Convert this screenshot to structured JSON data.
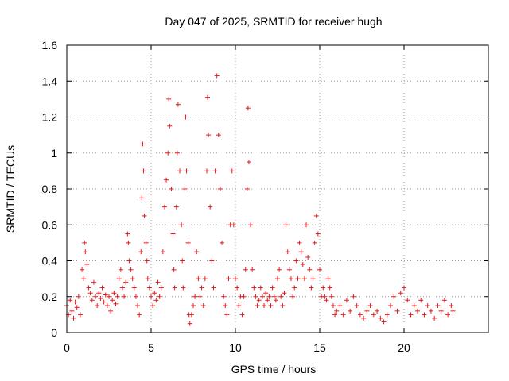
{
  "chart_data": {
    "type": "scatter",
    "title": "Day 047 of 2025, SRMTID for receiver hugh",
    "xlabel": "GPS time / hours",
    "ylabel": "SRMTID / TECUs",
    "xlim": [
      0,
      25
    ],
    "ylim": [
      0,
      1.6
    ],
    "xticks": [
      0,
      5,
      10,
      15,
      20
    ],
    "xtick_labels": [
      "0",
      "5",
      "10",
      "15",
      "20"
    ],
    "yticks": [
      0,
      0.2,
      0.4,
      0.6,
      0.8,
      1,
      1.2,
      1.4,
      1.6
    ],
    "ytick_labels": [
      "0",
      "0.2",
      "0.4",
      "0.6",
      "0.8",
      "1",
      "1.2",
      "1.4",
      "1.6"
    ],
    "grid": true,
    "marker": "plus",
    "series": [
      {
        "name": "SRMTID",
        "color": "#e41a1c",
        "points": [
          [
            0.0,
            0.15
          ],
          [
            0.1,
            0.1
          ],
          [
            0.2,
            0.18
          ],
          [
            0.3,
            0.12
          ],
          [
            0.4,
            0.08
          ],
          [
            0.5,
            0.17
          ],
          [
            0.6,
            0.14
          ],
          [
            0.7,
            0.2
          ],
          [
            0.8,
            0.1
          ],
          [
            0.9,
            0.35
          ],
          [
            1.0,
            0.3
          ],
          [
            1.05,
            0.5
          ],
          [
            1.1,
            0.45
          ],
          [
            1.2,
            0.38
          ],
          [
            1.3,
            0.25
          ],
          [
            1.4,
            0.22
          ],
          [
            1.5,
            0.18
          ],
          [
            1.6,
            0.28
          ],
          [
            1.7,
            0.2
          ],
          [
            1.8,
            0.15
          ],
          [
            1.9,
            0.22
          ],
          [
            2.0,
            0.19
          ],
          [
            2.1,
            0.25
          ],
          [
            2.2,
            0.17
          ],
          [
            2.3,
            0.21
          ],
          [
            2.4,
            0.15
          ],
          [
            2.5,
            0.2
          ],
          [
            2.6,
            0.12
          ],
          [
            2.7,
            0.18
          ],
          [
            2.8,
            0.22
          ],
          [
            2.9,
            0.16
          ],
          [
            3.0,
            0.2
          ],
          [
            3.1,
            0.3
          ],
          [
            3.2,
            0.35
          ],
          [
            3.3,
            0.25
          ],
          [
            3.4,
            0.2
          ],
          [
            3.5,
            0.28
          ],
          [
            3.6,
            0.55
          ],
          [
            3.65,
            0.5
          ],
          [
            3.7,
            0.4
          ],
          [
            3.8,
            0.35
          ],
          [
            3.9,
            0.3
          ],
          [
            4.0,
            0.25
          ],
          [
            4.1,
            0.2
          ],
          [
            4.2,
            0.15
          ],
          [
            4.3,
            0.1
          ],
          [
            4.4,
            0.45
          ],
          [
            4.45,
            0.75
          ],
          [
            4.5,
            1.05
          ],
          [
            4.55,
            0.9
          ],
          [
            4.6,
            0.65
          ],
          [
            4.7,
            0.5
          ],
          [
            4.75,
            0.4
          ],
          [
            4.8,
            0.3
          ],
          [
            4.9,
            0.25
          ],
          [
            5.0,
            0.2
          ],
          [
            5.1,
            0.15
          ],
          [
            5.2,
            0.22
          ],
          [
            5.3,
            0.18
          ],
          [
            5.4,
            0.28
          ],
          [
            5.5,
            0.2
          ],
          [
            5.6,
            0.25
          ],
          [
            5.7,
            0.45
          ],
          [
            5.8,
            0.7
          ],
          [
            5.9,
            0.85
          ],
          [
            6.0,
            1.0
          ],
          [
            6.05,
            1.3
          ],
          [
            6.1,
            1.15
          ],
          [
            6.2,
            0.8
          ],
          [
            6.3,
            0.55
          ],
          [
            6.35,
            0.35
          ],
          [
            6.4,
            0.25
          ],
          [
            6.5,
            0.7
          ],
          [
            6.55,
            1.0
          ],
          [
            6.6,
            1.27
          ],
          [
            6.7,
            0.9
          ],
          [
            6.8,
            0.6
          ],
          [
            6.85,
            0.4
          ],
          [
            6.9,
            0.25
          ],
          [
            7.0,
            0.8
          ],
          [
            7.05,
            1.2
          ],
          [
            7.1,
            0.9
          ],
          [
            7.2,
            0.5
          ],
          [
            7.25,
            0.1
          ],
          [
            7.3,
            0.05
          ],
          [
            7.4,
            0.1
          ],
          [
            7.5,
            0.15
          ],
          [
            7.6,
            0.2
          ],
          [
            7.7,
            0.45
          ],
          [
            7.8,
            0.3
          ],
          [
            7.9,
            0.2
          ],
          [
            8.0,
            0.25
          ],
          [
            8.1,
            0.15
          ],
          [
            8.2,
            0.3
          ],
          [
            8.3,
            0.9
          ],
          [
            8.35,
            1.31
          ],
          [
            8.4,
            1.1
          ],
          [
            8.5,
            0.7
          ],
          [
            8.6,
            0.4
          ],
          [
            8.7,
            0.25
          ],
          [
            8.8,
            0.9
          ],
          [
            8.9,
            1.43
          ],
          [
            9.0,
            1.1
          ],
          [
            9.1,
            0.8
          ],
          [
            9.2,
            0.5
          ],
          [
            9.3,
            0.2
          ],
          [
            9.4,
            0.15
          ],
          [
            9.5,
            0.1
          ],
          [
            9.6,
            0.3
          ],
          [
            9.7,
            0.6
          ],
          [
            9.8,
            0.9
          ],
          [
            9.9,
            0.6
          ],
          [
            10.0,
            0.3
          ],
          [
            10.1,
            0.25
          ],
          [
            10.2,
            0.15
          ],
          [
            10.3,
            0.2
          ],
          [
            10.4,
            0.1
          ],
          [
            10.5,
            0.2
          ],
          [
            10.6,
            0.35
          ],
          [
            10.7,
            0.8
          ],
          [
            10.75,
            1.25
          ],
          [
            10.8,
            0.95
          ],
          [
            10.9,
            0.6
          ],
          [
            11.0,
            0.35
          ],
          [
            11.1,
            0.25
          ],
          [
            11.2,
            0.2
          ],
          [
            11.3,
            0.15
          ],
          [
            11.4,
            0.18
          ],
          [
            11.5,
            0.25
          ],
          [
            11.6,
            0.2
          ],
          [
            11.7,
            0.15
          ],
          [
            11.8,
            0.22
          ],
          [
            11.9,
            0.18
          ],
          [
            12.0,
            0.2
          ],
          [
            12.1,
            0.15
          ],
          [
            12.2,
            0.25
          ],
          [
            12.3,
            0.2
          ],
          [
            12.4,
            0.18
          ],
          [
            12.5,
            0.3
          ],
          [
            12.6,
            0.35
          ],
          [
            12.7,
            0.2
          ],
          [
            12.8,
            0.15
          ],
          [
            12.9,
            0.22
          ],
          [
            13.0,
            0.6
          ],
          [
            13.1,
            0.45
          ],
          [
            13.2,
            0.35
          ],
          [
            13.3,
            0.3
          ],
          [
            13.4,
            0.2
          ],
          [
            13.5,
            0.25
          ],
          [
            13.6,
            0.4
          ],
          [
            13.7,
            0.3
          ],
          [
            13.8,
            0.5
          ],
          [
            13.9,
            0.45
          ],
          [
            14.0,
            0.38
          ],
          [
            14.1,
            0.3
          ],
          [
            14.2,
            0.6
          ],
          [
            14.3,
            0.42
          ],
          [
            14.4,
            0.35
          ],
          [
            14.5,
            0.25
          ],
          [
            14.6,
            0.3
          ],
          [
            14.7,
            0.5
          ],
          [
            14.8,
            0.65
          ],
          [
            14.9,
            0.55
          ],
          [
            15.0,
            0.35
          ],
          [
            15.1,
            0.2
          ],
          [
            15.2,
            0.25
          ],
          [
            15.3,
            0.2
          ],
          [
            15.4,
            0.18
          ],
          [
            15.5,
            0.3
          ],
          [
            15.6,
            0.25
          ],
          [
            15.7,
            0.2
          ],
          [
            15.8,
            0.15
          ],
          [
            15.9,
            0.1
          ],
          [
            16.0,
            0.12
          ],
          [
            16.2,
            0.15
          ],
          [
            16.4,
            0.1
          ],
          [
            16.6,
            0.18
          ],
          [
            16.8,
            0.12
          ],
          [
            17.0,
            0.2
          ],
          [
            17.2,
            0.15
          ],
          [
            17.4,
            0.1
          ],
          [
            17.6,
            0.08
          ],
          [
            17.8,
            0.12
          ],
          [
            18.0,
            0.15
          ],
          [
            18.2,
            0.1
          ],
          [
            18.4,
            0.12
          ],
          [
            18.6,
            0.08
          ],
          [
            18.8,
            0.06
          ],
          [
            19.0,
            0.1
          ],
          [
            19.2,
            0.15
          ],
          [
            19.4,
            0.2
          ],
          [
            19.6,
            0.12
          ],
          [
            19.8,
            0.22
          ],
          [
            20.0,
            0.25
          ],
          [
            20.2,
            0.18
          ],
          [
            20.4,
            0.1
          ],
          [
            20.6,
            0.15
          ],
          [
            20.8,
            0.12
          ],
          [
            21.0,
            0.18
          ],
          [
            21.2,
            0.1
          ],
          [
            21.4,
            0.15
          ],
          [
            21.6,
            0.12
          ],
          [
            21.8,
            0.08
          ],
          [
            22.0,
            0.15
          ],
          [
            22.2,
            0.12
          ],
          [
            22.4,
            0.18
          ],
          [
            22.6,
            0.1
          ],
          [
            22.8,
            0.15
          ],
          [
            22.9,
            0.12
          ]
        ]
      }
    ]
  }
}
